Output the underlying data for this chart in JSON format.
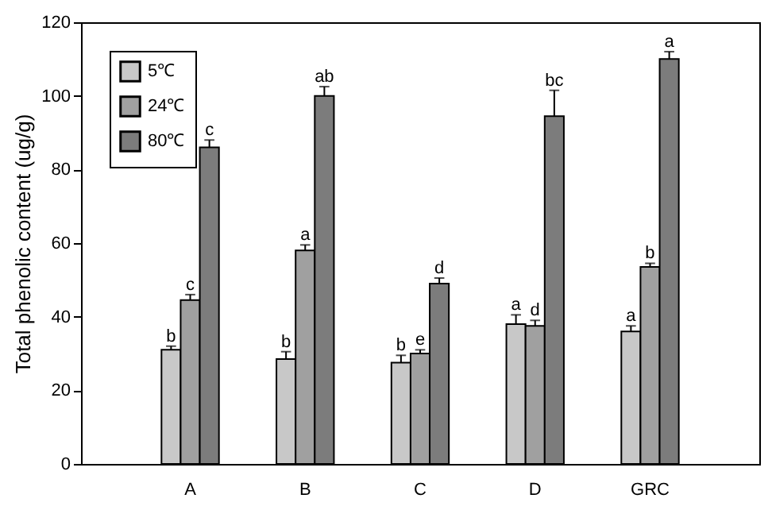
{
  "chart_data": {
    "type": "bar",
    "ylabel": "Total phenolic content (ug/g)",
    "categories": [
      "A",
      "B",
      "C",
      "D",
      "GRC"
    ],
    "series": [
      {
        "name": "5℃",
        "color": "#c8c8c8",
        "values": [
          31,
          28.5,
          27.5,
          38,
          36
        ],
        "errors": [
          1,
          2,
          2,
          2.5,
          1.5
        ],
        "value_labels": [
          "b",
          "b",
          "b",
          "a",
          "a"
        ]
      },
      {
        "name": "24℃",
        "color": "#a0a0a0",
        "values": [
          44.5,
          58,
          30,
          37.5,
          53.5
        ],
        "errors": [
          1.5,
          1.5,
          1,
          1.5,
          1
        ],
        "value_labels": [
          "c",
          "a",
          "e",
          "d",
          "b"
        ]
      },
      {
        "name": "80℃",
        "color": "#7c7c7c",
        "values": [
          86,
          100,
          49,
          94.5,
          110
        ],
        "errors": [
          2,
          2.5,
          1.5,
          7,
          2
        ],
        "value_labels": [
          "c",
          "ab",
          "d",
          "bc",
          "a"
        ]
      }
    ],
    "ylim": [
      0,
      120
    ],
    "yticks": [
      0,
      20,
      40,
      60,
      80,
      100,
      120
    ],
    "grid": false,
    "legend": "top left"
  }
}
